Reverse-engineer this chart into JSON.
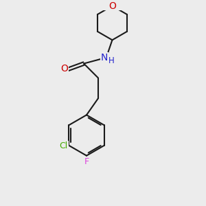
{
  "background_color": "#ececec",
  "bond_color": "#1a1a1a",
  "atom_colors": {
    "O_ring": "#cc0000",
    "O_carbonyl": "#cc0000",
    "N": "#2222cc",
    "H": "#2222cc",
    "Cl": "#44aa00",
    "F": "#dd44dd"
  },
  "figsize": [
    3.0,
    3.0
  ],
  "dpi": 100
}
